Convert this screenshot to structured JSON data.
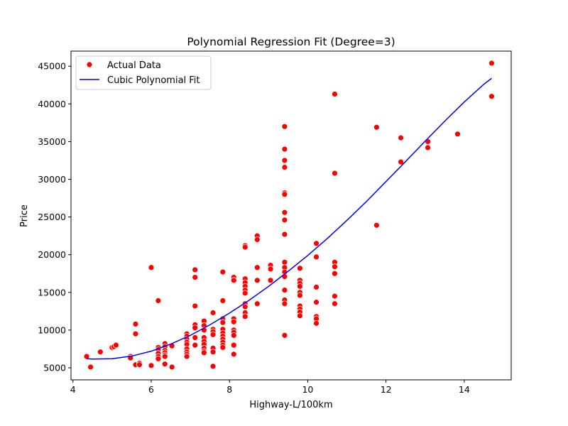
{
  "chart_data": {
    "type": "scatter",
    "title": "Polynomial Regression Fit (Degree=3)",
    "xlabel": "Highway-L/100km",
    "ylabel": "Price",
    "xlim": [
      3.95,
      15.2
    ],
    "ylim": [
      3400,
      47000
    ],
    "xticks": [
      4,
      6,
      8,
      10,
      12,
      14
    ],
    "yticks": [
      5000,
      10000,
      15000,
      20000,
      25000,
      30000,
      35000,
      40000,
      45000
    ],
    "grid": false,
    "legend_position": "top-left",
    "series": [
      {
        "name": "Actual Data",
        "kind": "scatter",
        "color": "#ff0000",
        "points": [
          [
            4.35,
            6500
          ],
          [
            4.45,
            5100
          ],
          [
            4.7,
            7100
          ],
          [
            5.0,
            7700
          ],
          [
            5.05,
            7800
          ],
          [
            5.1,
            8000
          ],
          [
            5.47,
            6500
          ],
          [
            5.47,
            6300
          ],
          [
            5.6,
            5400
          ],
          [
            5.6,
            9500
          ],
          [
            5.6,
            10800
          ],
          [
            5.7,
            5600
          ],
          [
            5.7,
            5400
          ],
          [
            6.0,
            5300
          ],
          [
            6.0,
            18300
          ],
          [
            6.18,
            13900
          ],
          [
            6.18,
            7700
          ],
          [
            6.18,
            7400
          ],
          [
            6.18,
            6900
          ],
          [
            6.18,
            6500
          ],
          [
            6.18,
            6200
          ],
          [
            6.35,
            8200
          ],
          [
            6.35,
            7800
          ],
          [
            6.35,
            7300
          ],
          [
            6.35,
            7000
          ],
          [
            6.35,
            6700
          ],
          [
            6.35,
            6500
          ],
          [
            6.35,
            5500
          ],
          [
            6.53,
            7900
          ],
          [
            6.53,
            5100
          ],
          [
            6.91,
            9500
          ],
          [
            6.91,
            9200
          ],
          [
            6.91,
            8800
          ],
          [
            6.91,
            8400
          ],
          [
            6.91,
            8100
          ],
          [
            6.91,
            7500
          ],
          [
            6.91,
            7100
          ],
          [
            6.91,
            6800
          ],
          [
            6.91,
            6500
          ],
          [
            7.12,
            18000
          ],
          [
            7.12,
            17000
          ],
          [
            7.12,
            13200
          ],
          [
            7.12,
            10700
          ],
          [
            7.12,
            10300
          ],
          [
            7.12,
            9000
          ],
          [
            7.12,
            8000
          ],
          [
            7.35,
            11200
          ],
          [
            7.35,
            10600
          ],
          [
            7.35,
            10000
          ],
          [
            7.35,
            9000
          ],
          [
            7.35,
            8500
          ],
          [
            7.35,
            8100
          ],
          [
            7.35,
            7600
          ],
          [
            7.35,
            7200
          ],
          [
            7.35,
            7000
          ],
          [
            7.58,
            12300
          ],
          [
            7.58,
            10100
          ],
          [
            7.58,
            9800
          ],
          [
            7.58,
            9400
          ],
          [
            7.58,
            7600
          ],
          [
            7.58,
            7100
          ],
          [
            7.58,
            5200
          ],
          [
            7.83,
            17700
          ],
          [
            7.83,
            13900
          ],
          [
            7.83,
            11500
          ],
          [
            7.83,
            11000
          ],
          [
            7.83,
            10100
          ],
          [
            7.83,
            9600
          ],
          [
            7.83,
            9200
          ],
          [
            7.83,
            8800
          ],
          [
            7.83,
            8400
          ],
          [
            7.83,
            8000
          ],
          [
            7.83,
            7700
          ],
          [
            8.11,
            17000
          ],
          [
            8.11,
            16600
          ],
          [
            8.11,
            11500
          ],
          [
            8.11,
            11100
          ],
          [
            8.11,
            10000
          ],
          [
            8.11,
            9700
          ],
          [
            8.11,
            9300
          ],
          [
            8.11,
            8000
          ],
          [
            8.11,
            6800
          ],
          [
            8.4,
            21200
          ],
          [
            8.4,
            21000
          ],
          [
            8.4,
            16800
          ],
          [
            8.4,
            16300
          ],
          [
            8.4,
            15800
          ],
          [
            8.4,
            15300
          ],
          [
            8.4,
            14900
          ],
          [
            8.4,
            13500
          ],
          [
            8.4,
            13100
          ],
          [
            8.4,
            12300
          ],
          [
            8.4,
            11800
          ],
          [
            8.71,
            22500
          ],
          [
            8.71,
            22000
          ],
          [
            8.71,
            18300
          ],
          [
            8.71,
            16600
          ],
          [
            8.71,
            13500
          ],
          [
            9.05,
            18600
          ],
          [
            9.05,
            18100
          ],
          [
            9.05,
            16600
          ],
          [
            9.41,
            37000
          ],
          [
            9.41,
            34000
          ],
          [
            9.41,
            32500
          ],
          [
            9.41,
            31600
          ],
          [
            9.41,
            28200
          ],
          [
            9.41,
            28000
          ],
          [
            9.41,
            25600
          ],
          [
            9.41,
            24600
          ],
          [
            9.41,
            22700
          ],
          [
            9.41,
            19000
          ],
          [
            9.41,
            18300
          ],
          [
            9.41,
            17700
          ],
          [
            9.41,
            17100
          ],
          [
            9.41,
            15300
          ],
          [
            9.41,
            14000
          ],
          [
            9.41,
            13500
          ],
          [
            9.41,
            9300
          ],
          [
            9.8,
            18200
          ],
          [
            9.8,
            16600
          ],
          [
            9.8,
            16200
          ],
          [
            9.8,
            15800
          ],
          [
            9.8,
            15000
          ],
          [
            9.8,
            14600
          ],
          [
            9.8,
            13200
          ],
          [
            9.8,
            12800
          ],
          [
            9.8,
            12400
          ],
          [
            9.8,
            11900
          ],
          [
            10.22,
            21500
          ],
          [
            10.22,
            19700
          ],
          [
            10.22,
            15700
          ],
          [
            10.22,
            13700
          ],
          [
            10.22,
            11800
          ],
          [
            10.22,
            11500
          ],
          [
            10.22,
            10900
          ],
          [
            10.69,
            41300
          ],
          [
            10.69,
            30800
          ],
          [
            10.69,
            19000
          ],
          [
            10.69,
            18400
          ],
          [
            10.69,
            17500
          ],
          [
            10.69,
            14500
          ],
          [
            10.69,
            13500
          ],
          [
            11.76,
            36900
          ],
          [
            11.76,
            23900
          ],
          [
            12.38,
            35500
          ],
          [
            12.38,
            32300
          ],
          [
            13.07,
            35000
          ],
          [
            13.07,
            34200
          ],
          [
            13.83,
            36000
          ],
          [
            14.7,
            45400
          ],
          [
            14.7,
            41000
          ]
        ]
      },
      {
        "name": "Cubic Polynomial Fit",
        "kind": "line",
        "color": "#0000ff",
        "x": [
          4.35,
          4.5,
          5.0,
          5.5,
          6.0,
          6.5,
          7.0,
          7.5,
          8.0,
          8.5,
          9.0,
          9.5,
          10.0,
          10.5,
          11.0,
          11.5,
          12.0,
          12.5,
          13.0,
          13.5,
          14.0,
          14.5,
          14.7
        ],
        "y": [
          6200,
          6150,
          6200,
          6550,
          7200,
          8150,
          9300,
          10700,
          12250,
          13950,
          15800,
          17800,
          19900,
          22150,
          24550,
          27050,
          29700,
          32350,
          35050,
          37700,
          40250,
          42600,
          43400
        ]
      }
    ]
  }
}
